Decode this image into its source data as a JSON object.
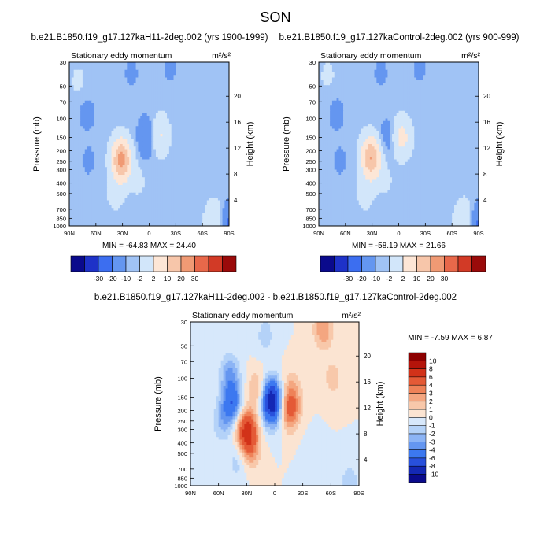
{
  "chart_data": {
    "type": "heatmap",
    "title": "SON",
    "colors": {
      "panel_scale": [
        "#0a0a8c",
        "#1e32c8",
        "#3c6ef0",
        "#6496f0",
        "#a0c3f5",
        "#d2e6fa",
        "#fde6d6",
        "#f7c6aa",
        "#f09a74",
        "#e8684a",
        "#d23a26",
        "#9a0a0a"
      ],
      "diff_scale": [
        "#0a0a8c",
        "#1428b4",
        "#2850dc",
        "#3c78f0",
        "#6496f0",
        "#8cb4f5",
        "#b4d2f8",
        "#d7e8fb",
        "#fbe4d2",
        "#f8c8aa",
        "#f4a680",
        "#ee8258",
        "#e45a36",
        "#d23219",
        "#b4140a",
        "#8c0000"
      ]
    },
    "panels": [
      {
        "name": "top-left",
        "title": "b.e21.B1850.f19_g17.127kaH11-2deg.002 (yrs 1900-1999)",
        "left_label": "Stationary eddy momentum",
        "units": "m²/s²",
        "ylabel": "Pressure (mb)",
        "ylabel_right": "Height (km)",
        "minmax": "MIN = -64.83  MAX = 24.40",
        "features": [
          {
            "lat": 32,
            "p": 230,
            "v": 21
          },
          {
            "lat": 30,
            "p": 260,
            "v": 14
          },
          {
            "lat": 38,
            "p": 500,
            "v": 4
          },
          {
            "lat": 12,
            "p": 380,
            "v": 3
          },
          {
            "lat": -11,
            "p": 145,
            "v": 12
          },
          {
            "lat": 2,
            "p": 150,
            "v": -11
          },
          {
            "lat": -74,
            "p": 900,
            "v": 11
          },
          {
            "lat": -90,
            "p": 950,
            "v": -13
          },
          {
            "lat": 70,
            "p": 90,
            "v": -4
          },
          {
            "lat": 68,
            "p": 250,
            "v": -3
          },
          {
            "lat": 20,
            "p": 38,
            "v": -3
          },
          {
            "lat": -24,
            "p": 35,
            "v": -3
          },
          {
            "lat": -40,
            "p": 60,
            "v": 2
          },
          {
            "lat": 80,
            "p": 45,
            "v": 3
          },
          {
            "lat": -60,
            "p": 350,
            "v": -2
          },
          {
            "lat": -30,
            "p": 700,
            "v": 1.5
          }
        ]
      },
      {
        "name": "top-right",
        "title": "b.e21.B1850.f19_g17.127kaControl-2deg.002 (yrs 900-999)",
        "left_label": "Stationary eddy momentum",
        "units": "m²/s²",
        "ylabel": "Pressure (mb)",
        "ylabel_right": "Height (km)",
        "minmax": "MIN = -58.19  MAX = 21.66",
        "features": [
          {
            "lat": 32,
            "p": 215,
            "v": 19
          },
          {
            "lat": 30,
            "p": 260,
            "v": 13
          },
          {
            "lat": 38,
            "p": 500,
            "v": 4
          },
          {
            "lat": 14,
            "p": 380,
            "v": 2.5
          },
          {
            "lat": -3,
            "p": 150,
            "v": 14
          },
          {
            "lat": 12,
            "p": 150,
            "v": -6
          },
          {
            "lat": -74,
            "p": 900,
            "v": 11
          },
          {
            "lat": -90,
            "p": 950,
            "v": -12
          },
          {
            "lat": 70,
            "p": 90,
            "v": -4
          },
          {
            "lat": 66,
            "p": 250,
            "v": -3
          },
          {
            "lat": 20,
            "p": 38,
            "v": -3
          },
          {
            "lat": -24,
            "p": 35,
            "v": -3
          },
          {
            "lat": 80,
            "p": 40,
            "v": 3
          },
          {
            "lat": -40,
            "p": 60,
            "v": 2
          },
          {
            "lat": -60,
            "p": 350,
            "v": -2
          },
          {
            "lat": -30,
            "p": 700,
            "v": 1.5
          }
        ]
      },
      {
        "name": "bottom-diff",
        "title": "b.e21.B1850.f19_g17.127kaH11-2deg.002 - b.e21.B1850.f19_g17.127kaControl-2deg.002",
        "left_label": "Stationary eddy momentum",
        "units": "m²/s²",
        "ylabel": "Pressure (mb)",
        "ylabel_right": "Height (km)",
        "minmax": "MIN = -7.59  MAX =  6.87",
        "features": [
          {
            "lat": 46,
            "p": 170,
            "v": -5.5
          },
          {
            "lat": 48,
            "p": 90,
            "v": -3
          },
          {
            "lat": 56,
            "p": 260,
            "v": -2
          },
          {
            "lat": 40,
            "p": 600,
            "v": -1.5
          },
          {
            "lat": 30,
            "p": 300,
            "v": 6.5
          },
          {
            "lat": 26,
            "p": 450,
            "v": 3
          },
          {
            "lat": 4,
            "p": 150,
            "v": -7.5
          },
          {
            "lat": 2,
            "p": 200,
            "v": -4
          },
          {
            "lat": -16,
            "p": 200,
            "v": 4.5
          },
          {
            "lat": -18,
            "p": 130,
            "v": 2
          },
          {
            "lat": 18,
            "p": 130,
            "v": 2.5
          },
          {
            "lat": -52,
            "p": 35,
            "v": 3
          },
          {
            "lat": -62,
            "p": 100,
            "v": 1.5
          },
          {
            "lat": 10,
            "p": 40,
            "v": -1.5
          },
          {
            "lat": -40,
            "p": 500,
            "v": -0.6
          },
          {
            "lat": -80,
            "p": 900,
            "v": -1.5
          }
        ]
      }
    ],
    "xlabels": [
      "90N",
      "60N",
      "30N",
      "0",
      "30S",
      "60S",
      "90S"
    ],
    "xlim": [
      90,
      -90
    ],
    "pressure_ticks": [
      30,
      50,
      70,
      100,
      150,
      200,
      250,
      300,
      400,
      500,
      700,
      850,
      1000
    ],
    "ylim": [
      1000,
      30
    ],
    "height_ticks": [
      4,
      8,
      12,
      16,
      20
    ],
    "colorbar_top": {
      "levels": [
        "-30",
        "-20",
        "-10",
        "-2",
        "2",
        "10",
        "20",
        "30"
      ]
    },
    "colorbar_bottom": {
      "levels": [
        "10",
        "8",
        "6",
        "4",
        "3",
        "2",
        "1",
        "0",
        "-1",
        "-2",
        "-3",
        "-4",
        "-6",
        "-8",
        "-10"
      ]
    }
  }
}
